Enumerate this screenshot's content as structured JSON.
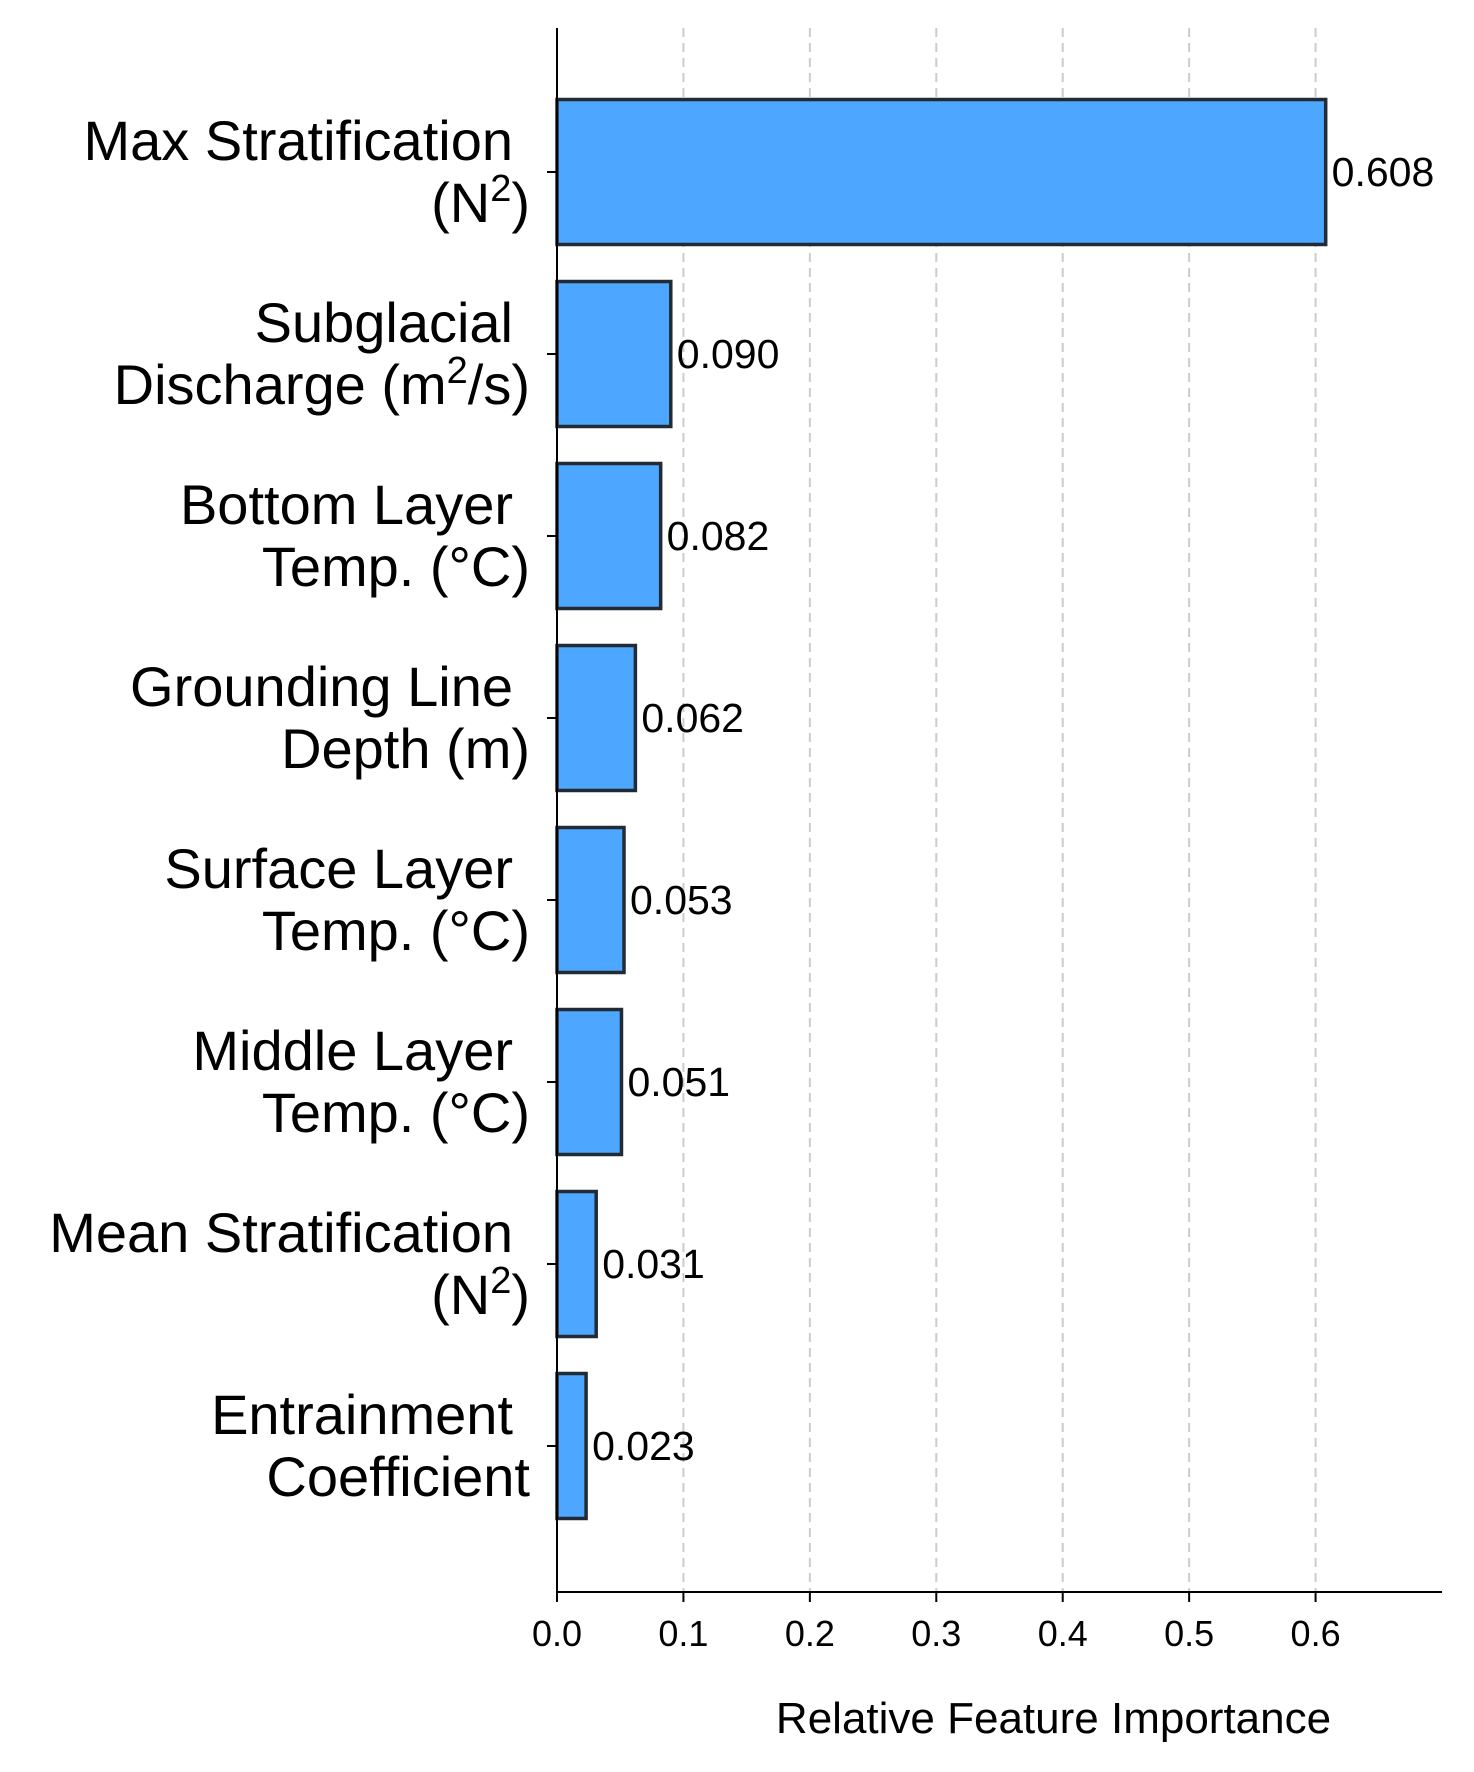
{
  "chart_data": {
    "type": "bar",
    "orientation": "horizontal",
    "categories": [
      {
        "lines": [
          "Max Stratification",
          "(N^2)"
        ]
      },
      {
        "lines": [
          "Subglacial",
          "Discharge (m^2/s)"
        ]
      },
      {
        "lines": [
          "Bottom Layer",
          "Temp. (°C)"
        ]
      },
      {
        "lines": [
          "Grounding Line",
          "Depth (m)"
        ]
      },
      {
        "lines": [
          "Surface Layer",
          "Temp. (°C)"
        ]
      },
      {
        "lines": [
          "Middle Layer",
          "Temp. (°C)"
        ]
      },
      {
        "lines": [
          "Mean Stratification",
          "(N^2)"
        ]
      },
      {
        "lines": [
          "Entrainment",
          "Coefficient"
        ]
      }
    ],
    "values": [
      0.608,
      0.09,
      0.082,
      0.062,
      0.053,
      0.051,
      0.031,
      0.023
    ],
    "value_labels": [
      "0.608",
      "0.090",
      "0.082",
      "0.062",
      "0.053",
      "0.051",
      "0.031",
      "0.023"
    ],
    "xlabel": "Relative Feature Importance",
    "ylabel": "",
    "title": "",
    "xlim": [
      0,
      0.7
    ],
    "xticks": [
      0.0,
      0.1,
      0.2,
      0.3,
      0.4,
      0.5,
      0.6
    ],
    "xtick_labels": [
      "0.0",
      "0.1",
      "0.2",
      "0.3",
      "0.4",
      "0.5",
      "0.6"
    ],
    "grid": "vertical dashed",
    "bar_color": "#4da6ff",
    "bar_edge_color": "#222b33",
    "grid_color": "#cccccc"
  }
}
